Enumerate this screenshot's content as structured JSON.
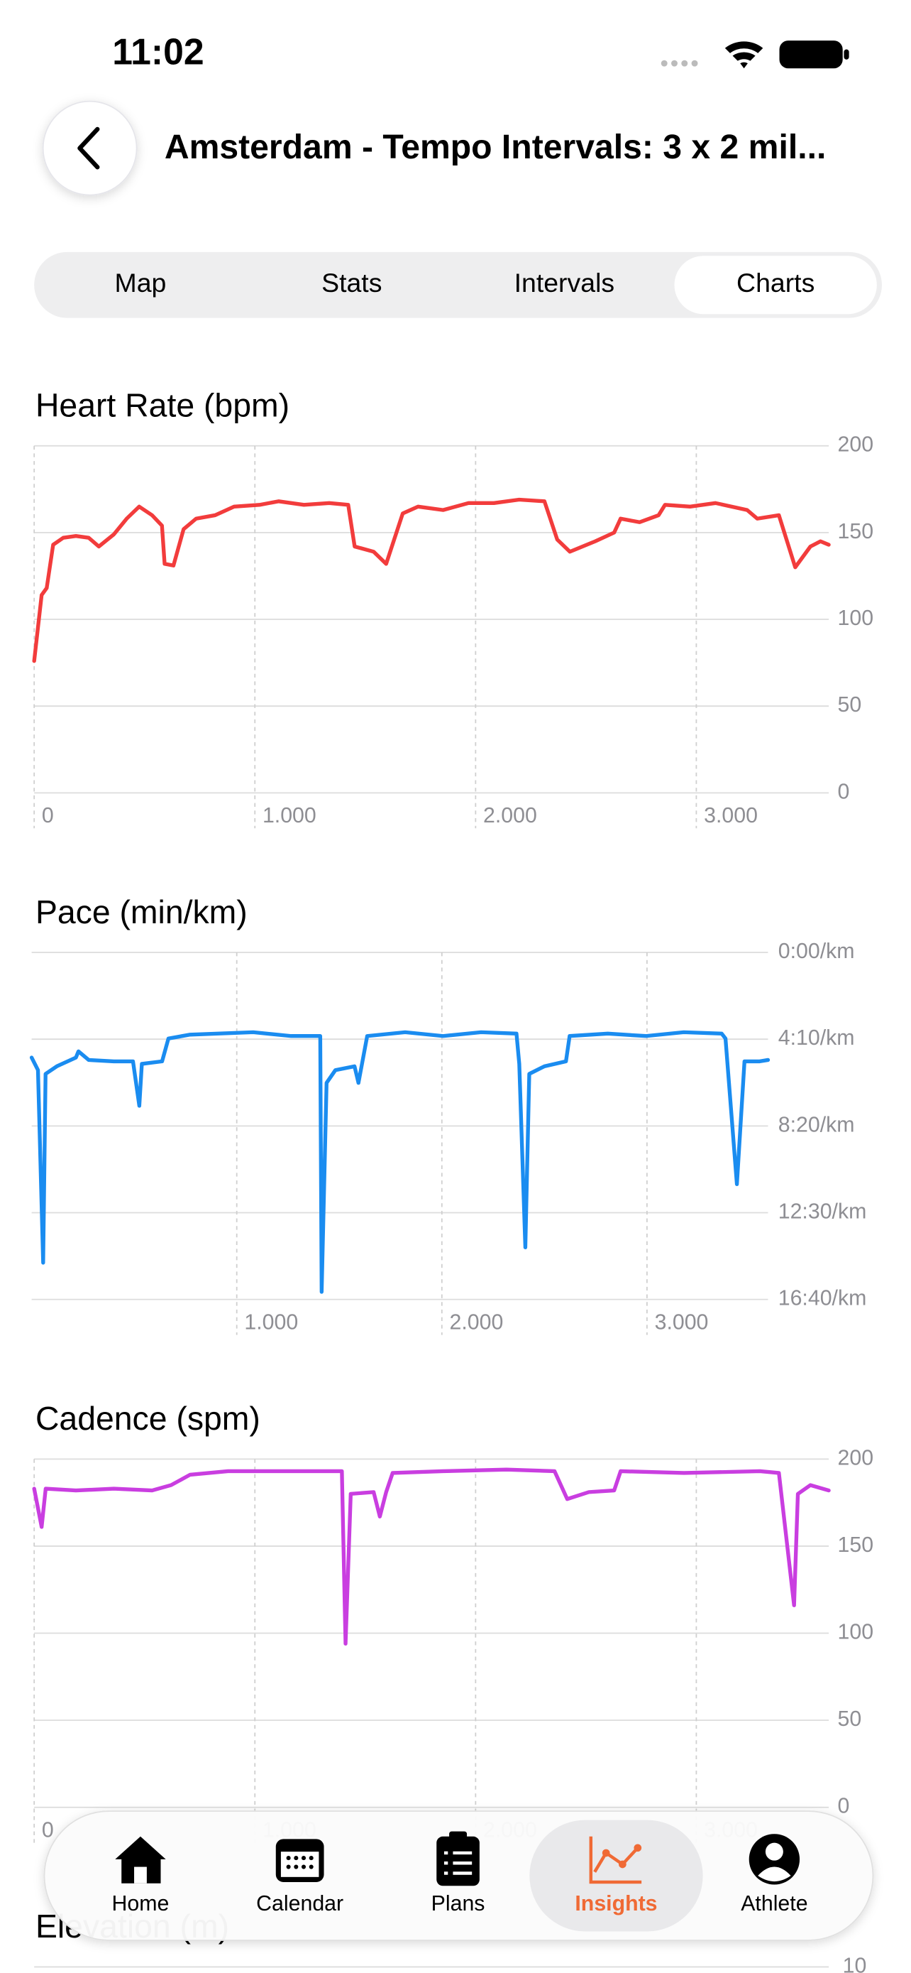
{
  "status_bar": {
    "time": "11:02"
  },
  "header": {
    "title": "Amsterdam - Tempo Intervals: 3 x 2 mil..."
  },
  "tabs": {
    "items": [
      "Map",
      "Stats",
      "Intervals",
      "Charts"
    ],
    "selected": 3
  },
  "chart_data": [
    {
      "type": "line",
      "title": "Heart Rate (bpm)",
      "color": "#f23c3c",
      "grid": true,
      "x": [
        0,
        34,
        57,
        86,
        132,
        189,
        247,
        293,
        361,
        419,
        476,
        534,
        579,
        591,
        631,
        677,
        734,
        820,
        906,
        1021,
        1107,
        1222,
        1337,
        1423,
        1452,
        1538,
        1595,
        1670,
        1739,
        1853,
        1968,
        2083,
        2197,
        2312,
        2370,
        2427,
        2542,
        2628,
        2657,
        2743,
        2829,
        2858,
        2972,
        3087,
        3230,
        3276,
        3374,
        3448,
        3517,
        3563,
        3600
      ],
      "values": [
        76,
        114,
        118,
        143,
        147,
        148,
        147,
        142,
        149,
        158,
        165,
        160,
        154,
        132,
        131,
        152,
        158,
        160,
        165,
        166,
        168,
        166,
        167,
        166,
        142,
        139,
        132,
        161,
        165,
        163,
        167,
        167,
        169,
        168,
        146,
        139,
        145,
        150,
        158,
        156,
        160,
        166,
        165,
        167,
        163,
        158,
        160,
        130,
        142,
        145,
        143
      ],
      "xlim": [
        0,
        3600
      ],
      "xticks": [
        0,
        {
          "value": 1000,
          "label": "1.000"
        },
        {
          "value": 2000,
          "label": "2.000"
        },
        {
          "value": 3000,
          "label": "3.000"
        }
      ],
      "ylim": [
        0,
        200
      ],
      "yticks": [
        0,
        50,
        100,
        150,
        200
      ]
    },
    {
      "type": "line",
      "title": "Pace (min/km)",
      "color": "#1a8cf0",
      "grid": true,
      "x": [
        0,
        31,
        56,
        68,
        123,
        216,
        228,
        278,
        401,
        494,
        525,
        537,
        636,
        667,
        772,
        1080,
        1265,
        1407,
        1414,
        1438,
        1481,
        1574,
        1593,
        1636,
        1821,
        2006,
        2191,
        2364,
        2377,
        2407,
        2426,
        2500,
        2605,
        2623,
        2809,
        2994,
        3179,
        3364,
        3383,
        3438,
        3475,
        3549,
        3590
      ],
      "values": [
        303,
        339,
        894,
        350,
        328,
        303,
        285,
        310,
        314,
        314,
        442,
        321,
        314,
        248,
        237,
        230,
        241,
        241,
        978,
        376,
        339,
        328,
        376,
        241,
        230,
        241,
        230,
        234,
        321,
        850,
        350,
        328,
        314,
        241,
        234,
        241,
        230,
        234,
        248,
        668,
        314,
        314,
        310
      ],
      "xlim": [
        0,
        3590
      ],
      "xticks": [
        {
          "value": 1000,
          "label": "1.000"
        },
        {
          "value": 2000,
          "label": "2.000"
        },
        {
          "value": 3000,
          "label": "3.000"
        }
      ],
      "ylim": [
        1000,
        0
      ],
      "yticks": [
        {
          "value": 0,
          "label": "0:00/km"
        },
        {
          "value": 250,
          "label": "4:10/km"
        },
        {
          "value": 500,
          "label": "8:20/km"
        },
        {
          "value": 750,
          "label": "12:30/km"
        },
        {
          "value": 1000,
          "label": "16:40/km"
        }
      ]
    },
    {
      "type": "line",
      "title": "Cadence (spm)",
      "color": "#c93ee0",
      "grid": true,
      "x": [
        0,
        34,
        52,
        189,
        361,
        534,
        620,
        706,
        878,
        1107,
        1394,
        1411,
        1434,
        1538,
        1566,
        1595,
        1624,
        1853,
        2140,
        2358,
        2415,
        2513,
        2628,
        2657,
        2944,
        3288,
        3374,
        3443,
        3460,
        3517,
        3600
      ],
      "values": [
        183,
        161,
        183,
        182,
        183,
        182,
        185,
        191,
        193,
        193,
        193,
        94,
        180,
        181,
        167,
        181,
        192,
        193,
        194,
        193,
        177,
        181,
        182,
        193,
        192,
        193,
        192,
        116,
        180,
        185,
        182
      ],
      "xlim": [
        0,
        3600
      ],
      "xticks": [
        0,
        {
          "value": 1000,
          "label": "1.000"
        },
        {
          "value": 2000,
          "label": "2.000"
        },
        {
          "value": 3000,
          "label": "3.000"
        }
      ],
      "ylim": [
        0,
        200
      ],
      "yticks": [
        0,
        50,
        100,
        150,
        200
      ]
    },
    {
      "type": "line",
      "title": "Elevation (m)",
      "yticks": [
        10
      ]
    }
  ],
  "tab_bar": {
    "items": [
      "Home",
      "Calendar",
      "Plans",
      "Insights",
      "Athlete"
    ],
    "selected": 3
  }
}
